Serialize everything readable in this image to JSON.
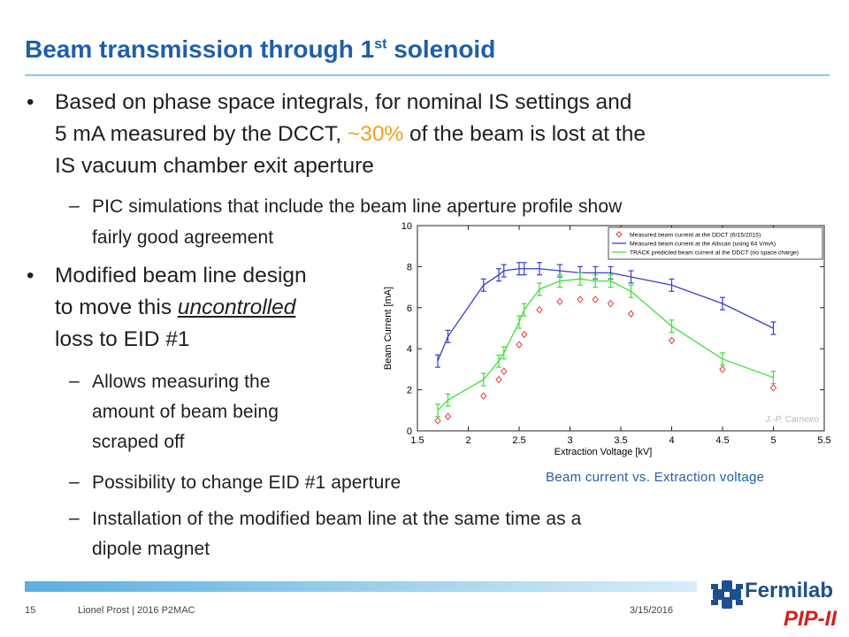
{
  "slide": {
    "title_main": "Beam transmission through 1",
    "title_sup": "st",
    "title_end": " solenoid"
  },
  "bullets": {
    "b1_l1": "Based on phase space integrals, for nominal IS settings and",
    "b1_l2a": "5 mA measured by the DCCT, ",
    "b1_l2_hl": "~30%",
    "b1_l2b": " of the beam is lost at the",
    "b1_l3": "IS vacuum chamber exit aperture",
    "s1_l1": "PIC simulations that include the beam line aperture profile show",
    "s1_l2": "fairly good agreement",
    "b2_l1": "Modified beam line design",
    "b2_l2a": "to move this ",
    "b2_l2_u": "uncontrolled",
    "b2_l3": "loss to EID #1",
    "s2_l1": "Allows measuring the",
    "s2_l2": "amount of beam being",
    "s2_l3": "scraped off",
    "s3_l1": "Possibility to change EID #1 aperture",
    "s4_l1": "Installation of the modified beam line at the same time as a",
    "s4_l2": "dipole magnet",
    "bullet_glyph": "•",
    "dash_glyph": "–"
  },
  "caption": "Beam current vs. Extraction voltage",
  "footer": {
    "page": "15",
    "author": "Lionel Prost | 2016 P2MAC",
    "date": "3/15/2016"
  },
  "logo": {
    "name": "Fermilab",
    "program": "PIP-II"
  },
  "colors": {
    "title": "#1f5fa8",
    "highlight": "#f0a020",
    "series_blue": "#3a3fc8",
    "series_green": "#3ee03a",
    "series_red": "#e23a3a"
  },
  "chart_data": {
    "type": "line",
    "xlabel": "Extraction Voltage [kV]",
    "ylabel": "Beam Current [mA]",
    "xlim": [
      1.5,
      5.5
    ],
    "ylim": [
      0,
      10
    ],
    "xticks": [
      1.5,
      2,
      2.5,
      3,
      3.5,
      4,
      4.5,
      5,
      5.5
    ],
    "yticks": [
      0,
      2,
      4,
      6,
      8,
      10
    ],
    "credit": "J.-P. Carneiro",
    "legend_position": "top-right",
    "series": [
      {
        "name": "Measured beam current at the DDCT (6/15/2015)",
        "style": "diamond",
        "color": "#e23a3a",
        "x": [
          1.7,
          1.8,
          2.15,
          2.3,
          2.35,
          2.5,
          2.55,
          2.7,
          2.9,
          3.1,
          3.25,
          3.4,
          3.6,
          4.0,
          4.5,
          5.0
        ],
        "y": [
          0.5,
          0.7,
          1.7,
          2.5,
          2.9,
          4.2,
          4.7,
          5.9,
          6.3,
          6.4,
          6.4,
          6.2,
          5.7,
          4.4,
          3.0,
          2.1
        ]
      },
      {
        "name": "Measured beam current at the Allscan (using 64 V/mA)",
        "style": "line-errorbar",
        "color": "#3a3fc8",
        "x": [
          1.7,
          1.8,
          2.15,
          2.3,
          2.35,
          2.5,
          2.55,
          2.7,
          2.9,
          3.1,
          3.25,
          3.4,
          3.6,
          4.0,
          4.5,
          5.0
        ],
        "y": [
          3.4,
          4.6,
          7.1,
          7.6,
          7.8,
          7.9,
          7.9,
          7.9,
          7.8,
          7.7,
          7.7,
          7.7,
          7.5,
          7.1,
          6.2,
          5.0
        ]
      },
      {
        "name": "TRACK predicted beam current at the DDCT (no space charge)",
        "style": "line-errorbar",
        "color": "#3ee03a",
        "x": [
          1.7,
          1.8,
          2.15,
          2.3,
          2.35,
          2.5,
          2.55,
          2.7,
          2.9,
          3.1,
          3.25,
          3.4,
          3.6,
          4.0,
          4.5,
          5.0
        ],
        "y": [
          1.0,
          1.5,
          2.5,
          3.4,
          3.8,
          5.3,
          5.9,
          6.9,
          7.3,
          7.4,
          7.3,
          7.3,
          6.8,
          5.1,
          3.5,
          2.6
        ]
      }
    ]
  }
}
